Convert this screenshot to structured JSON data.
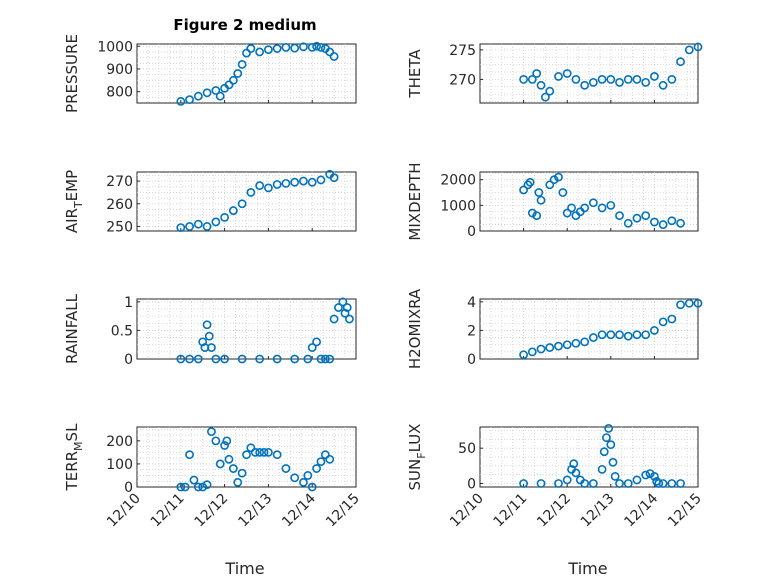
{
  "figure": {
    "title": "Figure 2 medium",
    "xlabel": "Time",
    "x_tick_labels": [
      "12/10",
      "12/11",
      "12/12",
      "12/13",
      "12/14",
      "12/15"
    ],
    "marker_color": "#0072BD"
  },
  "chart_data": [
    {
      "type": "scatter",
      "name": "pressure",
      "ylabel": "PRESSURE",
      "xlim": [
        0,
        5
      ],
      "ylim": [
        750,
        1010
      ],
      "yticks": [
        800,
        900,
        1000
      ],
      "grid": true,
      "x": [
        1.0,
        1.2,
        1.4,
        1.6,
        1.8,
        1.9,
        2.0,
        2.1,
        2.2,
        2.3,
        2.4,
        2.5,
        2.6,
        2.8,
        3.0,
        3.2,
        3.4,
        3.6,
        3.8,
        4.0,
        4.1,
        4.2,
        4.3,
        4.4,
        4.5
      ],
      "y": [
        757,
        765,
        780,
        795,
        805,
        780,
        815,
        830,
        850,
        880,
        920,
        970,
        990,
        975,
        985,
        990,
        995,
        992,
        998,
        995,
        1000,
        995,
        990,
        975,
        955
      ]
    },
    {
      "type": "scatter",
      "name": "theta",
      "ylabel": "THETA",
      "xlim": [
        0,
        5
      ],
      "ylim": [
        266,
        276
      ],
      "yticks": [
        270,
        275
      ],
      "grid": true,
      "x": [
        1.0,
        1.2,
        1.3,
        1.4,
        1.5,
        1.6,
        1.8,
        2.0,
        2.2,
        2.4,
        2.6,
        2.8,
        3.0,
        3.2,
        3.4,
        3.6,
        3.8,
        4.0,
        4.2,
        4.4,
        4.6,
        4.8,
        5.0
      ],
      "y": [
        270,
        270,
        271,
        269,
        267,
        268,
        270.5,
        271,
        270,
        269,
        269.5,
        270,
        270,
        269.5,
        270,
        270,
        269.5,
        270.5,
        269,
        270,
        273,
        275,
        275.5
      ]
    },
    {
      "type": "scatter",
      "name": "air_temp",
      "ylabel": "AIR_TEMP",
      "xlim": [
        0,
        5
      ],
      "ylim": [
        248,
        274
      ],
      "yticks": [
        250,
        260,
        270
      ],
      "grid": true,
      "x": [
        1.0,
        1.2,
        1.4,
        1.6,
        1.8,
        2.0,
        2.2,
        2.4,
        2.6,
        2.8,
        3.0,
        3.2,
        3.4,
        3.6,
        3.8,
        4.0,
        4.2,
        4.4,
        4.5
      ],
      "y": [
        249.5,
        250,
        251,
        250,
        252,
        254,
        257,
        260,
        265,
        268,
        267,
        268.5,
        269,
        269.5,
        270,
        269.5,
        270.5,
        273,
        271.5
      ]
    },
    {
      "type": "scatter",
      "name": "mixdepth",
      "ylabel": "MIXDEPTH",
      "xlim": [
        0,
        5
      ],
      "ylim": [
        0,
        2300
      ],
      "yticks": [
        0,
        1000,
        2000
      ],
      "grid": true,
      "x": [
        1.0,
        1.1,
        1.15,
        1.2,
        1.3,
        1.35,
        1.4,
        1.6,
        1.7,
        1.8,
        1.9,
        2.0,
        2.1,
        2.2,
        2.3,
        2.4,
        2.6,
        2.8,
        3.0,
        3.2,
        3.4,
        3.6,
        3.8,
        4.0,
        4.2,
        4.4,
        4.6
      ],
      "y": [
        1600,
        1800,
        1900,
        700,
        600,
        1500,
        1200,
        1800,
        2000,
        2100,
        1500,
        700,
        900,
        600,
        750,
        900,
        1100,
        900,
        1000,
        600,
        300,
        500,
        600,
        350,
        250,
        400,
        300
      ]
    },
    {
      "type": "scatter",
      "name": "rainfall",
      "ylabel": "RAINFALL",
      "xlim": [
        0,
        5
      ],
      "ylim": [
        0,
        1.05
      ],
      "yticks": [
        0,
        0.5,
        1
      ],
      "grid": true,
      "x": [
        1.0,
        1.2,
        1.4,
        1.5,
        1.55,
        1.6,
        1.65,
        1.7,
        1.8,
        2.0,
        2.4,
        2.8,
        3.2,
        3.6,
        3.9,
        4.0,
        4.1,
        4.2,
        4.3,
        4.4,
        4.5,
        4.6,
        4.7,
        4.75,
        4.8,
        4.85
      ],
      "y": [
        0,
        0,
        0,
        0.3,
        0.2,
        0.6,
        0.4,
        0.2,
        0,
        0,
        0,
        0,
        0,
        0,
        0,
        0.2,
        0.3,
        0,
        0,
        0,
        0.7,
        0.9,
        1.0,
        0.8,
        0.9,
        0.7
      ]
    },
    {
      "type": "scatter",
      "name": "h2omixra",
      "ylabel": "H2OMIXRA",
      "xlim": [
        0,
        5
      ],
      "ylim": [
        0,
        4.2
      ],
      "yticks": [
        0,
        2,
        4
      ],
      "grid": true,
      "x": [
        1.0,
        1.2,
        1.4,
        1.6,
        1.8,
        2.0,
        2.2,
        2.4,
        2.6,
        2.8,
        3.0,
        3.2,
        3.4,
        3.6,
        3.8,
        4.0,
        4.2,
        4.4,
        4.6,
        4.8,
        5.0
      ],
      "y": [
        0.3,
        0.5,
        0.7,
        0.8,
        0.9,
        1.0,
        1.1,
        1.2,
        1.5,
        1.7,
        1.7,
        1.7,
        1.6,
        1.7,
        1.7,
        2.0,
        2.6,
        2.8,
        3.8,
        3.9,
        3.9
      ]
    },
    {
      "type": "scatter",
      "name": "terr_msl",
      "ylabel": "TERR_MSL",
      "xlim": [
        0,
        5
      ],
      "ylim": [
        0,
        260
      ],
      "yticks": [
        0,
        100,
        200
      ],
      "grid": true,
      "x": [
        1.0,
        1.1,
        1.2,
        1.3,
        1.4,
        1.5,
        1.6,
        1.7,
        1.8,
        1.9,
        2.0,
        2.05,
        2.1,
        2.2,
        2.3,
        2.4,
        2.5,
        2.6,
        2.7,
        2.8,
        2.9,
        3.0,
        3.2,
        3.4,
        3.6,
        3.8,
        3.9,
        4.0,
        4.1,
        4.2,
        4.3,
        4.4
      ],
      "y": [
        0,
        0,
        140,
        30,
        0,
        0,
        10,
        240,
        200,
        100,
        180,
        200,
        120,
        80,
        20,
        60,
        140,
        170,
        150,
        150,
        150,
        150,
        140,
        80,
        40,
        20,
        50,
        0,
        80,
        110,
        140,
        120
      ]
    },
    {
      "type": "scatter",
      "name": "sun_flux",
      "ylabel": "SUN_FLUX",
      "xlim": [
        0,
        5
      ],
      "ylim": [
        -5,
        80
      ],
      "yticks": [
        0,
        50
      ],
      "grid": true,
      "x": [
        1.0,
        1.4,
        1.8,
        2.0,
        2.1,
        2.15,
        2.2,
        2.3,
        2.4,
        2.6,
        2.8,
        2.85,
        2.9,
        2.95,
        3.0,
        3.05,
        3.1,
        3.2,
        3.4,
        3.6,
        3.8,
        3.9,
        4.0,
        4.05,
        4.1,
        4.2,
        4.4,
        4.6
      ],
      "y": [
        0,
        0,
        0,
        5,
        20,
        28,
        15,
        5,
        0,
        0,
        20,
        45,
        65,
        78,
        55,
        30,
        10,
        0,
        0,
        5,
        12,
        14,
        10,
        3,
        0,
        0,
        0,
        0
      ]
    }
  ]
}
